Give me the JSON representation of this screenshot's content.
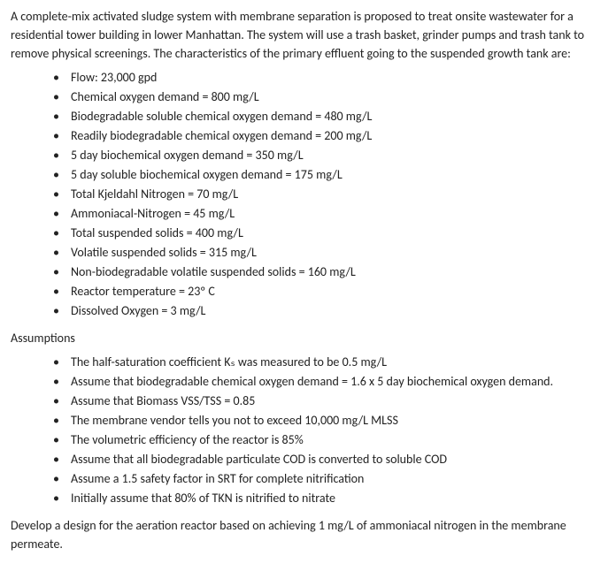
{
  "intro": "A complete-mix activated sludge system with membrane separation is proposed to treat onsite wastewater for a residential tower building in lower Manhattan. The system will use a trash basket, grinder pumps and trash tank to remove physical screenings. The characteristics of the primary effluent going to the suspended growth tank are:",
  "params": [
    "Flow: 23,000 gpd",
    "Chemical oxygen demand = 800 mg/L",
    "Biodegradable soluble chemical oxygen demand = 480 mg/L",
    "Readily biodegradable chemical oxygen demand = 200 mg/L",
    "5 day biochemical oxygen demand = 350 mg/L",
    "5 day soluble biochemical oxygen demand = 175 mg/L",
    "Total Kjeldahl Nitrogen = 70 mg/L",
    "Ammoniacal-Nitrogen = 45 mg/L",
    "Total suspended solids = 400 mg/L",
    "Volatile suspended solids = 315 mg/L",
    "Non-biodegradable volatile suspended solids = 160 mg/L",
    "Reactor temperature = 23º C",
    "Dissolved Oxygen = 3 mg/L"
  ],
  "assumptions_label": "Assumptions",
  "assumptions": [
    "The half-saturation coefficient Kₛ was measured to be 0.5 mg/L",
    "Assume that biodegradable chemical oxygen demand = 1.6 x 5 day biochemical oxygen demand.",
    "Assume that Biomass VSS/TSS = 0.85",
    "The membrane vendor tells you not to exceed 10,000 mg/L MLSS",
    "The volumetric efficiency of the reactor is 85%",
    "Assume that all biodegradable particulate COD is converted to soluble COD",
    "Assume a 1.5 safety factor in SRT for complete nitrification",
    "Initially assume that 80% of TKN is nitrified to nitrate"
  ],
  "closing": "Develop a design for the aeration reactor based on achieving 1 mg/L of ammoniacal nitrogen in the membrane permeate."
}
